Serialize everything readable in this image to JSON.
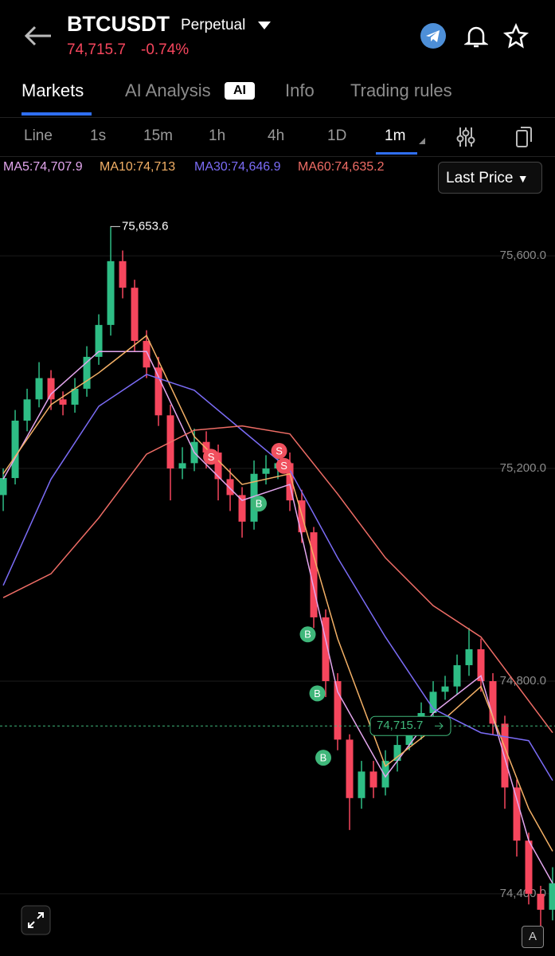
{
  "header": {
    "symbol": "BTCUSDT",
    "contract": "Perpetual",
    "price": "74,715.7",
    "change": "-0.74%"
  },
  "tabs": [
    "Markets",
    "AI Analysis",
    "Info",
    "Trading rules"
  ],
  "ai_badge": "AI",
  "intervals": [
    "Line",
    "1s",
    "15m",
    "1h",
    "4h",
    "1D",
    "1m"
  ],
  "price_type": "Last Price",
  "corner_badge": "A",
  "chart_data": {
    "type": "candlestick",
    "x": [
      0,
      1,
      2,
      3,
      4,
      5,
      6,
      7,
      8,
      9,
      10,
      11,
      12,
      13,
      14,
      15,
      16,
      17,
      18,
      19,
      20,
      21,
      22,
      23,
      24,
      25,
      26,
      27,
      28,
      29,
      30,
      31,
      32,
      33,
      34,
      35,
      36,
      37,
      38,
      39,
      40,
      41,
      42,
      43,
      44,
      45,
      46
    ],
    "open": [
      75150,
      75182,
      75290,
      75330,
      75370,
      75330,
      75320,
      75350,
      75410,
      75470,
      75590,
      75540,
      75440,
      75390,
      75300,
      75200,
      75210,
      75250,
      75230,
      75180,
      75150,
      75100,
      75190,
      75200,
      75210,
      75140,
      75080,
      74920,
      74800,
      74690,
      74580,
      74630,
      74600,
      74650,
      74680,
      74700,
      74740,
      74780,
      74790,
      74830,
      74860,
      74800,
      74720,
      74600,
      74500,
      74400,
      74370
    ],
    "high": [
      75200,
      75310,
      75350,
      75400,
      75385,
      75345,
      75370,
      75430,
      75490,
      75653.6,
      75610,
      75555,
      75460,
      75410,
      75320,
      75240,
      75275,
      75270,
      75245,
      75200,
      75165,
      75215,
      75225,
      75240,
      75230,
      75160,
      75090,
      74935,
      74815,
      74700,
      74650,
      74650,
      74670,
      74700,
      74720,
      74760,
      74800,
      74810,
      74850,
      74900,
      74880,
      74815,
      74735,
      74615,
      74515,
      74415,
      74450
    ],
    "low": [
      75120,
      75170,
      75270,
      75315,
      75310,
      75300,
      75305,
      75335,
      75395,
      75450,
      75520,
      75420,
      75370,
      75280,
      75140,
      75180,
      75195,
      75200,
      75140,
      75120,
      75070,
      75085,
      75170,
      75180,
      75120,
      75060,
      74900,
      74770,
      74670,
      74520,
      74560,
      74580,
      74585,
      74630,
      74670,
      74690,
      74720,
      74765,
      74775,
      74810,
      74780,
      74700,
      74560,
      74470,
      74380,
      74330,
      74350
    ],
    "close": [
      75182,
      75290,
      75330,
      75370,
      75330,
      75320,
      75350,
      75410,
      75470,
      75590,
      75540,
      75440,
      75390,
      75300,
      75200,
      75210,
      75250,
      75230,
      75180,
      75150,
      75100,
      75190,
      75200,
      75210,
      75140,
      75080,
      74920,
      74800,
      74690,
      74580,
      74630,
      74600,
      74650,
      74680,
      74700,
      74740,
      74780,
      74790,
      74830,
      74860,
      74800,
      74720,
      74600,
      74500,
      74400,
      74370,
      74420
    ],
    "up_color": "#2ebd85",
    "down_color": "#f6465d",
    "series": [
      {
        "name": "MA5:74,707.9",
        "color": "#e3a6ee",
        "x": [
          0,
          4,
          8,
          12,
          16,
          20,
          24,
          28,
          32,
          36,
          40,
          44,
          46
        ],
        "values": [
          75180,
          75340,
          75420,
          75420,
          75230,
          75140,
          75170,
          74780,
          74620,
          74740,
          74810,
          74500,
          74420
        ]
      },
      {
        "name": "MA10:74,713",
        "color": "#f3b066",
        "x": [
          0,
          4,
          8,
          12,
          16,
          20,
          24,
          28,
          32,
          36,
          40,
          44,
          46
        ],
        "values": [
          75190,
          75320,
          75380,
          75450,
          75260,
          75170,
          75190,
          74880,
          74640,
          74710,
          74790,
          74560,
          74480
        ]
      },
      {
        "name": "MA30:74,646.9",
        "color": "#7b6cf6",
        "x": [
          0,
          4,
          8,
          12,
          16,
          20,
          24,
          28,
          32,
          36,
          40,
          44,
          46
        ],
        "values": [
          74980,
          75180,
          75317,
          75377,
          75347,
          75272,
          75197,
          75032,
          74883,
          74748,
          74703,
          74688,
          74613
        ]
      },
      {
        "name": "MA60:74,635.2",
        "color": "#ef6d66",
        "x": [
          0,
          4,
          8,
          12,
          16,
          20,
          24,
          28,
          32,
          36,
          40,
          44,
          46
        ],
        "values": [
          74957,
          75002,
          75107,
          75227,
          75272,
          75280,
          75265,
          75152,
          75032,
          74942,
          74883,
          74763,
          74703
        ]
      }
    ],
    "annotations": [
      {
        "x": 9,
        "y": 75653.6,
        "label": "75,653.6"
      }
    ],
    "markers": [
      {
        "x": 17.4,
        "y": 75222,
        "label": "S",
        "color": "#f0505e"
      },
      {
        "x": 23.1,
        "y": 75233,
        "label": "S",
        "color": "#f0505e"
      },
      {
        "x": 23.5,
        "y": 75205,
        "label": "S",
        "color": "#f0505e"
      },
      {
        "x": 21.4,
        "y": 75134,
        "label": "B",
        "color": "#3fb77a"
      },
      {
        "x": 25.5,
        "y": 74888,
        "label": "B",
        "color": "#3fb77a"
      },
      {
        "x": 26.3,
        "y": 74777,
        "label": "B",
        "color": "#3fb77a"
      },
      {
        "x": 26.8,
        "y": 74656,
        "label": "B",
        "color": "#3fb77a"
      }
    ],
    "last_price": {
      "value": 74715.7,
      "label": "74,715.7"
    },
    "xlim": [
      -0.27,
      46.2
    ],
    "ylim": [
      74283,
      75786
    ],
    "yticks": [
      {
        "value": 75600,
        "label": "75,600.0"
      },
      {
        "value": 75200,
        "label": "75,200.0"
      },
      {
        "value": 74800,
        "label": "74,800.0"
      },
      {
        "value": 74400,
        "label": "74,400.0"
      }
    ],
    "grid": true
  }
}
